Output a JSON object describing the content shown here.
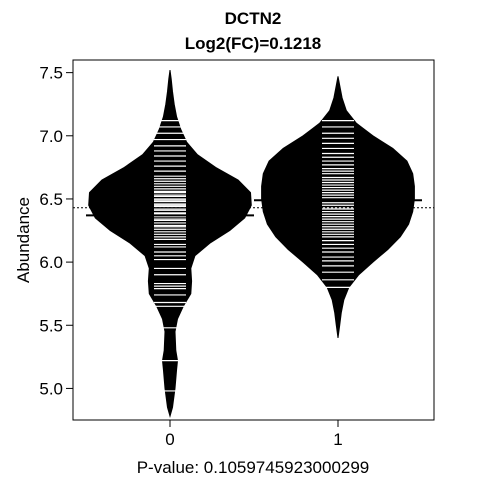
{
  "chart_data": {
    "type": "beanplot",
    "title": "DCTN2",
    "subtitle": "Log2(FC)=0.1218",
    "xlabel": "P-value: 0.1059745923000299",
    "ylabel": "Abundance",
    "categories": [
      "0",
      "1"
    ],
    "ylim": [
      4.75,
      7.6
    ],
    "yticks": [
      "5.0",
      "5.5",
      "6.0",
      "6.5",
      "7.0",
      "7.5"
    ],
    "overall_mean": 6.43,
    "group_means": [
      6.37,
      6.49
    ],
    "groups": [
      {
        "name": "0",
        "density": [
          [
            4.78,
            0.0
          ],
          [
            4.85,
            0.03
          ],
          [
            5.0,
            0.06
          ],
          [
            5.15,
            0.08
          ],
          [
            5.22,
            0.09
          ],
          [
            5.3,
            0.07
          ],
          [
            5.45,
            0.06
          ],
          [
            5.55,
            0.09
          ],
          [
            5.65,
            0.16
          ],
          [
            5.75,
            0.25
          ],
          [
            5.85,
            0.26
          ],
          [
            5.95,
            0.25
          ],
          [
            6.05,
            0.3
          ],
          [
            6.15,
            0.48
          ],
          [
            6.25,
            0.72
          ],
          [
            6.35,
            0.9
          ],
          [
            6.45,
            0.98
          ],
          [
            6.55,
            0.97
          ],
          [
            6.65,
            0.82
          ],
          [
            6.75,
            0.55
          ],
          [
            6.85,
            0.33
          ],
          [
            6.95,
            0.2
          ],
          [
            7.05,
            0.13
          ],
          [
            7.15,
            0.08
          ],
          [
            7.25,
            0.05
          ],
          [
            7.35,
            0.03
          ],
          [
            7.45,
            0.015
          ],
          [
            7.52,
            0.0
          ]
        ],
        "observations": [
          4.98,
          5.22,
          5.48,
          5.65,
          5.68,
          5.74,
          5.79,
          5.81,
          5.83,
          5.9,
          5.95,
          6.02,
          6.05,
          6.08,
          6.12,
          6.14,
          6.18,
          6.2,
          6.22,
          6.24,
          6.26,
          6.28,
          6.29,
          6.31,
          6.33,
          6.34,
          6.36,
          6.38,
          6.39,
          6.41,
          6.42,
          6.44,
          6.45,
          6.46,
          6.48,
          6.49,
          6.5,
          6.52,
          6.53,
          6.55,
          6.56,
          6.58,
          6.6,
          6.62,
          6.64,
          6.66,
          6.68,
          6.72,
          6.76,
          6.8,
          6.84,
          6.88,
          6.92,
          6.97,
          7.02,
          7.07,
          7.12
        ]
      },
      {
        "name": "1",
        "density": [
          [
            5.4,
            0.0
          ],
          [
            5.5,
            0.02
          ],
          [
            5.6,
            0.04
          ],
          [
            5.7,
            0.07
          ],
          [
            5.8,
            0.13
          ],
          [
            5.9,
            0.25
          ],
          [
            6.0,
            0.42
          ],
          [
            6.1,
            0.6
          ],
          [
            6.2,
            0.75
          ],
          [
            6.3,
            0.85
          ],
          [
            6.4,
            0.9
          ],
          [
            6.5,
            0.92
          ],
          [
            6.6,
            0.92
          ],
          [
            6.7,
            0.9
          ],
          [
            6.8,
            0.83
          ],
          [
            6.9,
            0.66
          ],
          [
            7.0,
            0.42
          ],
          [
            7.1,
            0.22
          ],
          [
            7.2,
            0.1
          ],
          [
            7.3,
            0.05
          ],
          [
            7.4,
            0.02
          ],
          [
            7.47,
            0.0
          ]
        ],
        "observations": [
          5.8,
          5.86,
          5.92,
          5.97,
          6.01,
          6.04,
          6.08,
          6.11,
          6.14,
          6.17,
          6.2,
          6.22,
          6.24,
          6.26,
          6.28,
          6.3,
          6.32,
          6.34,
          6.36,
          6.38,
          6.4,
          6.42,
          6.43,
          6.45,
          6.47,
          6.49,
          6.51,
          6.53,
          6.55,
          6.57,
          6.59,
          6.61,
          6.63,
          6.65,
          6.67,
          6.7,
          6.72,
          6.74,
          6.77,
          6.8,
          6.83,
          6.86,
          6.9,
          6.94,
          6.98,
          7.02,
          7.07,
          7.12
        ]
      }
    ]
  }
}
